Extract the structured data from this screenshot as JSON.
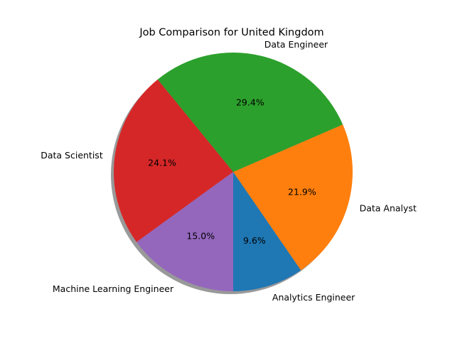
{
  "chart_data": {
    "type": "pie",
    "title": "Job Comparison for United Kingdom",
    "start_angle_deg": 270,
    "direction": "counterclockwise",
    "shadow": true,
    "slices": [
      {
        "label": "Analytics Engineer",
        "value": 9.6,
        "pct_label": "9.6%",
        "color": "#1f77b4"
      },
      {
        "label": "Data Analyst",
        "value": 21.9,
        "pct_label": "21.9%",
        "color": "#ff7f0e"
      },
      {
        "label": "Data Engineer",
        "value": 29.4,
        "pct_label": "29.4%",
        "color": "#2ca02c"
      },
      {
        "label": "Data Scientist",
        "value": 24.1,
        "pct_label": "24.1%",
        "color": "#d62728"
      },
      {
        "label": "Machine Learning Engineer",
        "value": 15.0,
        "pct_label": "15.0%",
        "color": "#9467bd"
      }
    ]
  }
}
